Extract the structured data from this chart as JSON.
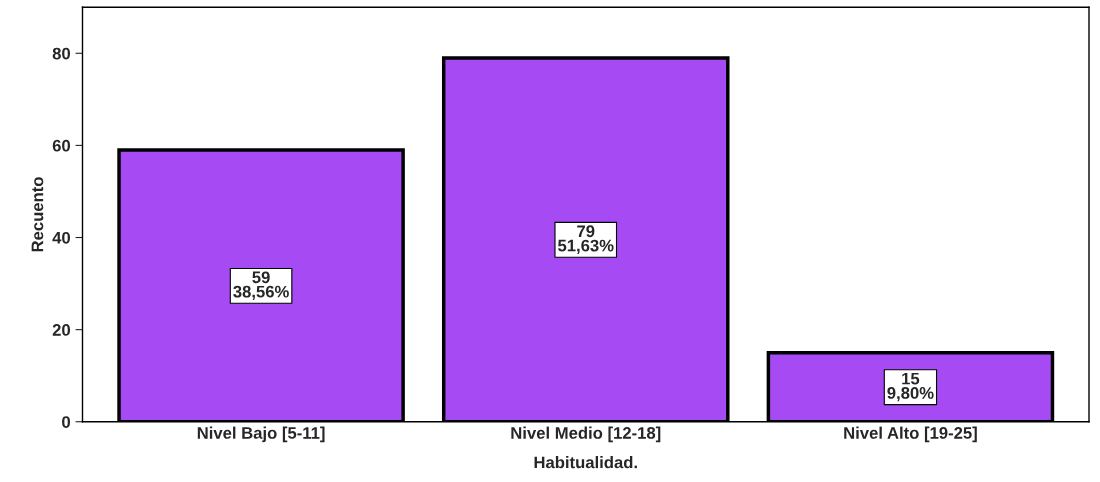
{
  "chart_data": {
    "type": "bar",
    "xlabel": "Habitualidad.",
    "ylabel": "Recuento",
    "categories": [
      "Nivel Bajo [5-11]",
      "Nivel Medio [12-18]",
      "Nivel Alto [19-25]"
    ],
    "values": [
      59,
      79,
      15
    ],
    "value_labels": [
      "59\n38,56%",
      "79\n51,63%",
      "15\n9,80%"
    ],
    "color": "#a64bf4",
    "ylim": [
      0,
      90
    ],
    "yticks": [
      0,
      20,
      40,
      60,
      80
    ],
    "grid": false
  }
}
